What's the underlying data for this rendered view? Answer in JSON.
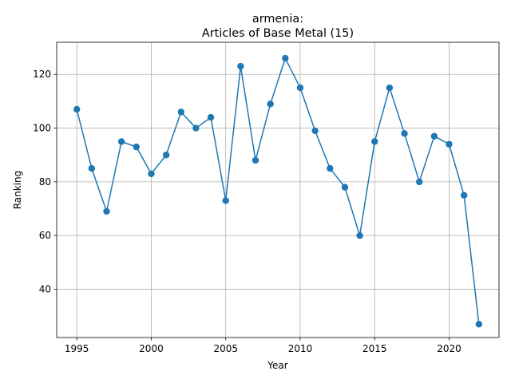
{
  "chart_data": {
    "type": "line",
    "title_line1": "armenia:",
    "title_line2": "Articles of Base Metal (15)",
    "xlabel": "Year",
    "ylabel": "Ranking",
    "xlim": [
      1993.65,
      2023.35
    ],
    "ylim": [
      22.05,
      131.95
    ],
    "xticks": [
      1995,
      2000,
      2005,
      2010,
      2015,
      2020
    ],
    "yticks": [
      40,
      60,
      80,
      100,
      120
    ],
    "grid": true,
    "marker": "circle",
    "series": [
      {
        "color": "#1f77b4",
        "x": [
          1995,
          1996,
          1997,
          1998,
          1999,
          2000,
          2001,
          2002,
          2003,
          2004,
          2005,
          2006,
          2007,
          2008,
          2009,
          2010,
          2011,
          2012,
          2013,
          2014,
          2015,
          2016,
          2017,
          2018,
          2019,
          2020,
          2021,
          2022
        ],
        "y": [
          107,
          85,
          69,
          95,
          93,
          83,
          90,
          106,
          100,
          104,
          73,
          123,
          88,
          109,
          126,
          115,
          99,
          85,
          78,
          60,
          95,
          115,
          98,
          80,
          97,
          94,
          75,
          27
        ]
      }
    ]
  }
}
